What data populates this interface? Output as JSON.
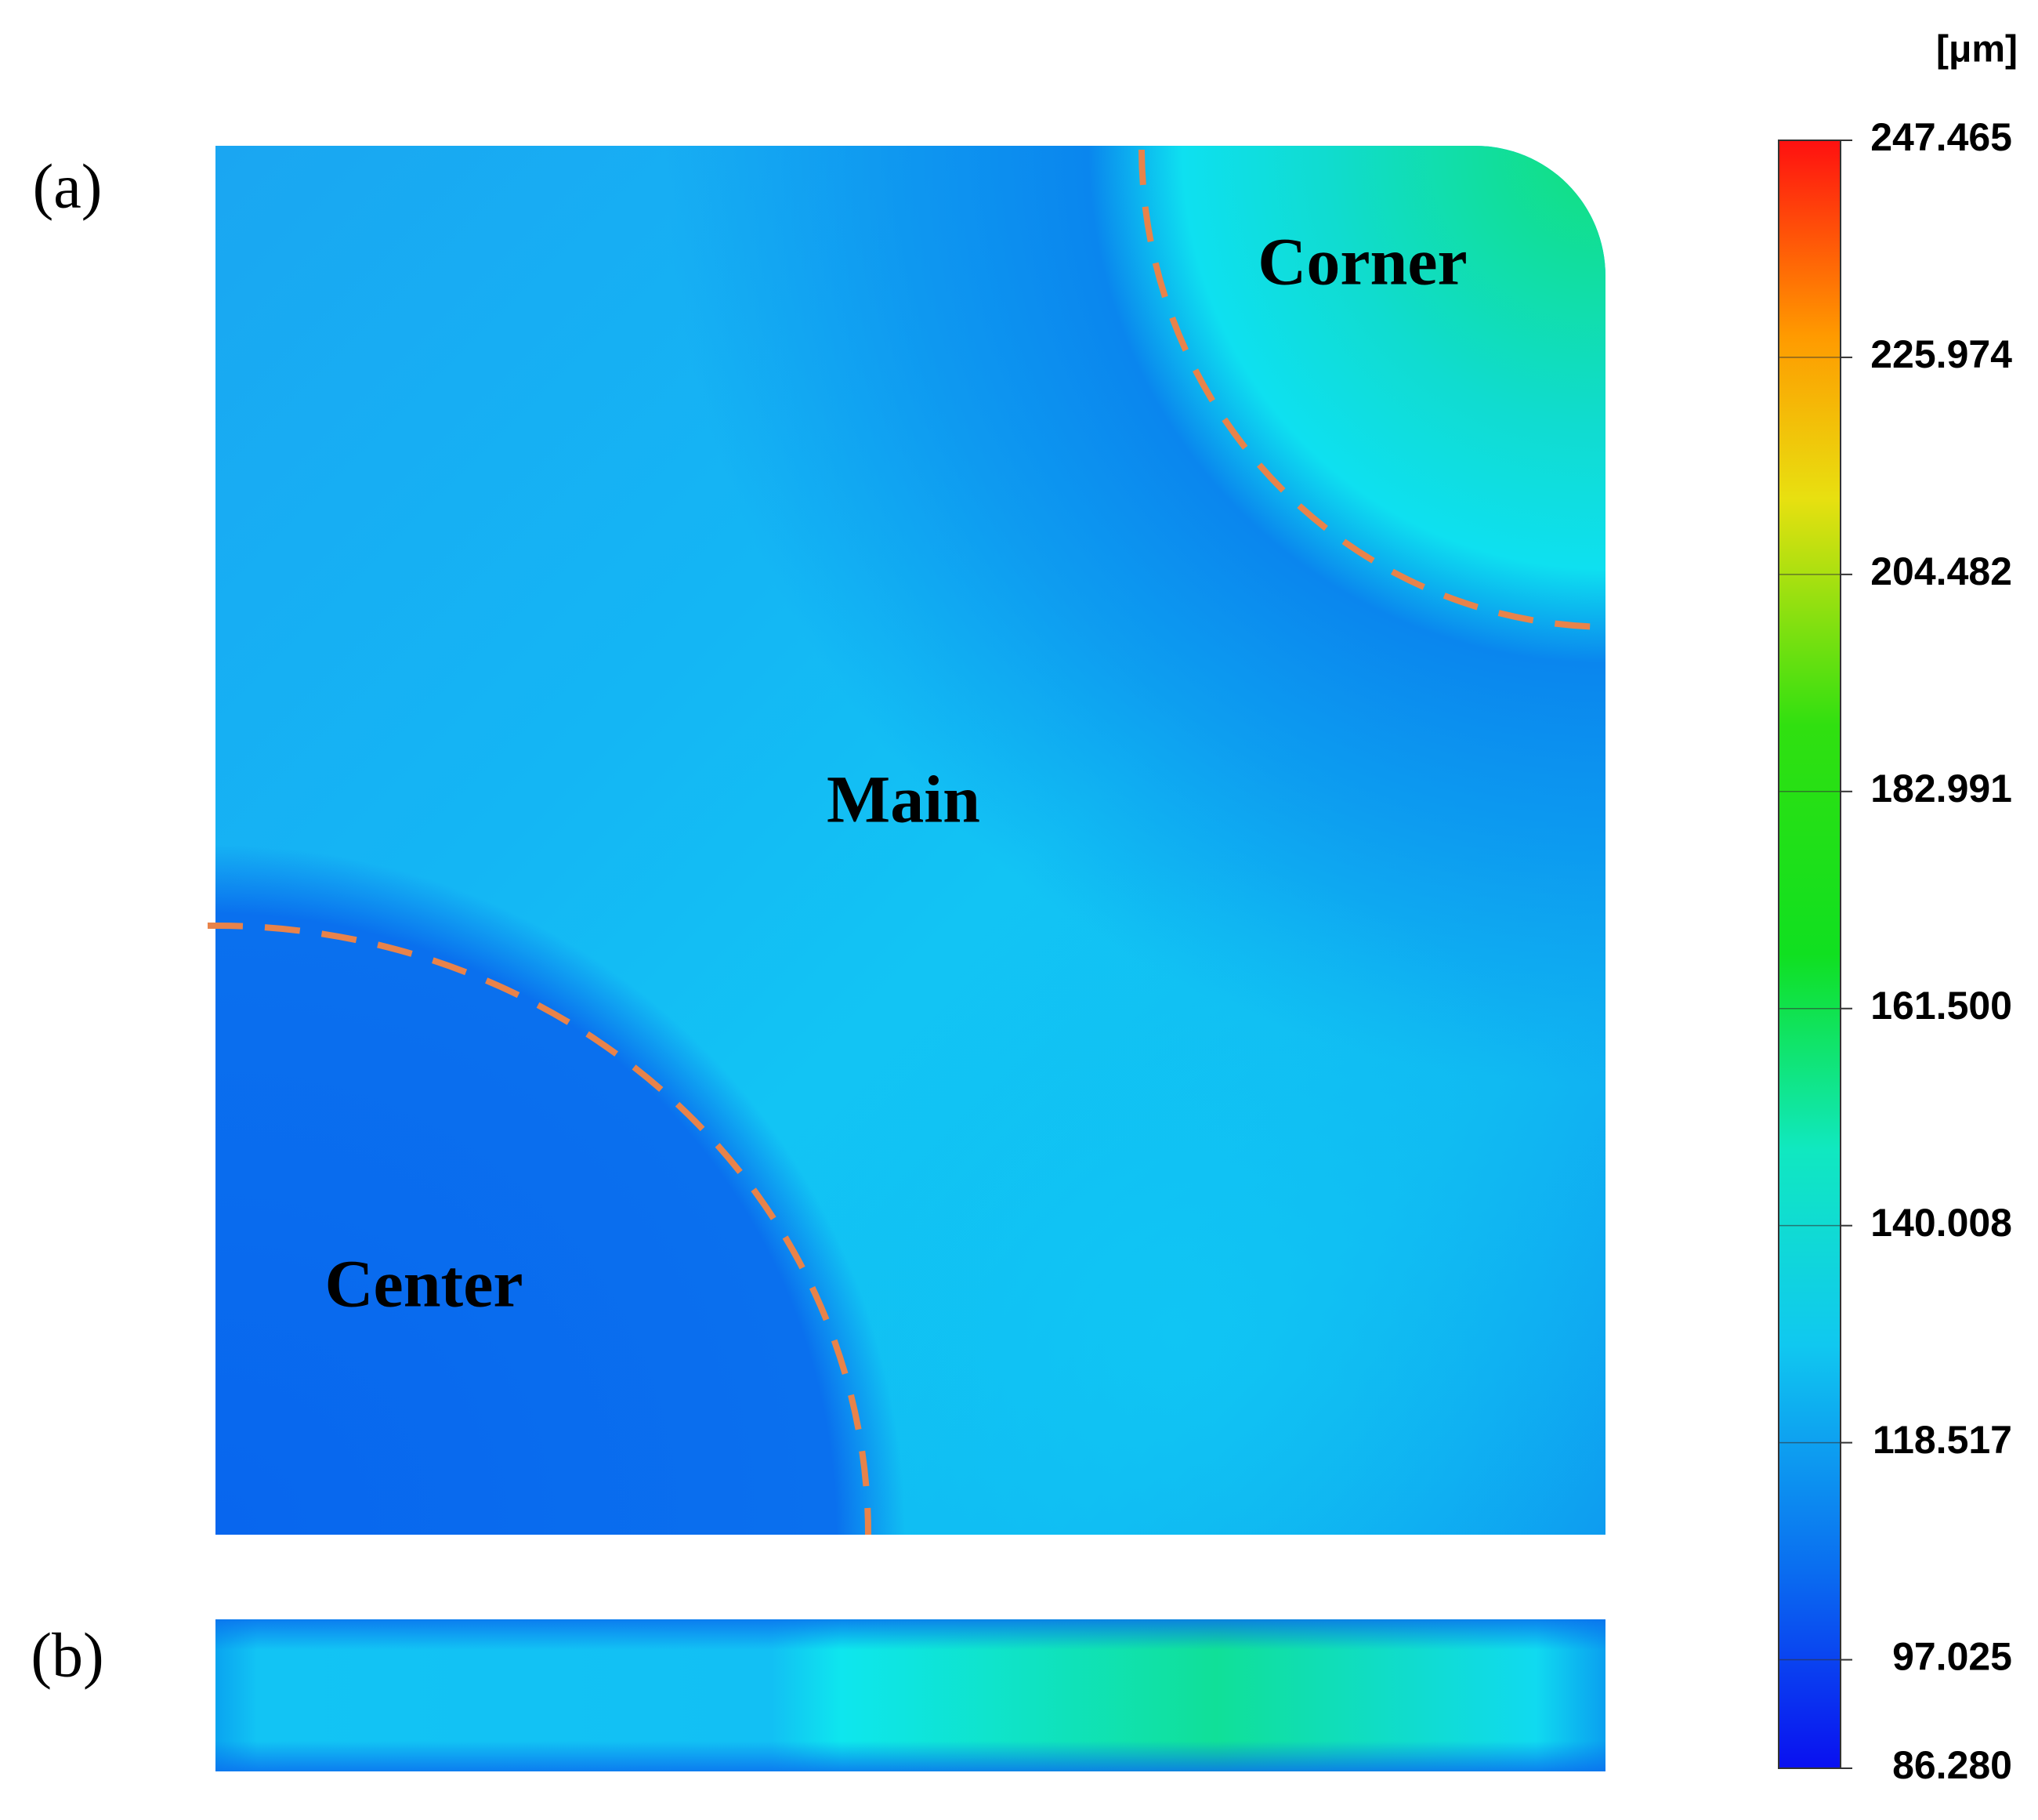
{
  "panel_labels": [
    "(a)",
    "(b)"
  ],
  "regions": {
    "corner": "Corner",
    "main": "Main",
    "center": "Center"
  },
  "colorbar": {
    "unit": "[μm]",
    "ticks": [
      {
        "value": 247.465,
        "label": "247.465"
      },
      {
        "value": 225.974,
        "label": "225.974"
      },
      {
        "value": 204.482,
        "label": "204.482"
      },
      {
        "value": 182.991,
        "label": "182.991"
      },
      {
        "value": 161.5,
        "label": "161.500"
      },
      {
        "value": 140.008,
        "label": "140.008"
      },
      {
        "value": 118.517,
        "label": "118.517"
      },
      {
        "value": 97.025,
        "label": "97.025"
      },
      {
        "value": 86.28,
        "label": "86.280"
      }
    ]
  }
}
